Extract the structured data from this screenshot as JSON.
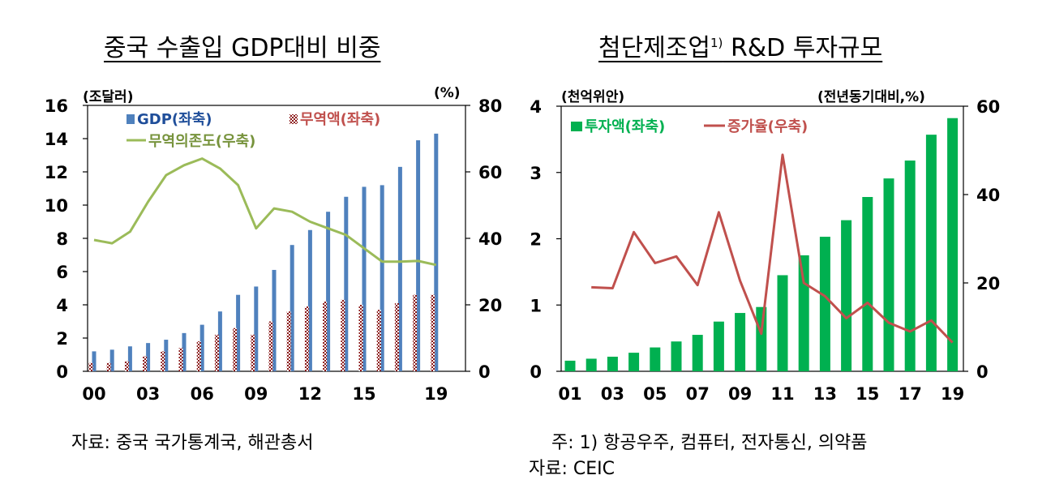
{
  "chart_data": [
    {
      "type": "bar",
      "title": "중국 수출입 GDP대비 비중",
      "left_unit": "(조달러)",
      "right_unit": "(%)",
      "x": [
        0,
        1,
        2,
        3,
        4,
        5,
        6,
        7,
        8,
        9,
        10,
        11,
        12,
        13,
        14,
        15,
        16,
        17,
        18,
        19
      ],
      "xticks": [
        "00",
        "03",
        "06",
        "09",
        "12",
        "15",
        "19"
      ],
      "xtick_positions": [
        0,
        3,
        6,
        9,
        12,
        15,
        19
      ],
      "ylim_left": [
        0,
        16
      ],
      "yticks_left": [
        "0",
        "2",
        "4",
        "6",
        "8",
        "10",
        "12",
        "14",
        "16"
      ],
      "ylim_right": [
        0,
        80
      ],
      "yticks_right": [
        "0",
        "20",
        "40",
        "60",
        "80"
      ],
      "series": [
        {
          "name": "GDP(좌축)",
          "kind": "bar",
          "axis": "left",
          "color": "#4f81bd",
          "values": [
            1.2,
            1.3,
            1.5,
            1.7,
            1.9,
            2.3,
            2.8,
            3.6,
            4.6,
            5.1,
            6.1,
            7.6,
            8.5,
            9.6,
            10.5,
            11.1,
            11.2,
            12.3,
            13.9,
            14.3
          ]
        },
        {
          "name": "무역액(좌축)",
          "kind": "bar",
          "axis": "left",
          "color": "#c0504d",
          "values": [
            0.5,
            0.5,
            0.6,
            0.9,
            1.2,
            1.4,
            1.8,
            2.2,
            2.6,
            2.2,
            3.0,
            3.6,
            3.9,
            4.2,
            4.3,
            4.0,
            3.7,
            4.1,
            4.6,
            4.6
          ]
        },
        {
          "name": "무역의존도(우축)",
          "kind": "line",
          "axis": "right",
          "color": "#9bbb59",
          "values": [
            39.5,
            38.5,
            42,
            51,
            59,
            62,
            64,
            61,
            56,
            43,
            49,
            48,
            45,
            43,
            41,
            37,
            33,
            33,
            33.2,
            32
          ]
        }
      ],
      "legend": "top"
    },
    {
      "type": "bar",
      "title": "첨단제조업",
      "title_sup": "1)",
      "title_tail": " R&D 투자규모",
      "left_unit": "(천억위안)",
      "right_unit": "(전년동기대비,%)",
      "x": [
        1,
        2,
        3,
        4,
        5,
        6,
        7,
        8,
        9,
        10,
        11,
        12,
        13,
        14,
        15,
        16,
        17,
        18,
        19
      ],
      "xticks": [
        "01",
        "03",
        "05",
        "07",
        "09",
        "11",
        "13",
        "15",
        "17",
        "19"
      ],
      "xtick_positions": [
        1,
        3,
        5,
        7,
        9,
        11,
        13,
        15,
        17,
        19
      ],
      "ylim_left": [
        0,
        4
      ],
      "yticks_left": [
        "0",
        "1",
        "2",
        "3",
        "4"
      ],
      "ylim_right": [
        0,
        60
      ],
      "yticks_right": [
        "0",
        "20",
        "40",
        "60"
      ],
      "series": [
        {
          "name": "투자액(좌축)",
          "kind": "bar",
          "axis": "left",
          "color": "#00b050",
          "values": [
            0.16,
            0.19,
            0.22,
            0.28,
            0.36,
            0.45,
            0.55,
            0.75,
            0.88,
            0.97,
            1.45,
            1.75,
            2.03,
            2.28,
            2.63,
            2.91,
            3.18,
            3.57,
            3.82
          ]
        },
        {
          "name": "증가율(우축)",
          "kind": "line",
          "axis": "right",
          "color": "#c0504d",
          "values": [
            null,
            19,
            18.8,
            31.5,
            24.5,
            26,
            19.5,
            36,
            20.5,
            8.5,
            49,
            20,
            17,
            12,
            15.5,
            11,
            9,
            11.5,
            6.5
          ]
        }
      ],
      "legend": "top"
    }
  ],
  "notes": {
    "left_source": "자료: 중국 국가통계국, 해관총서",
    "right_note": "주: 1) 항공우주, 컴퓨터, 전자통신, 의약품",
    "right_source": "자료: CEIC"
  }
}
